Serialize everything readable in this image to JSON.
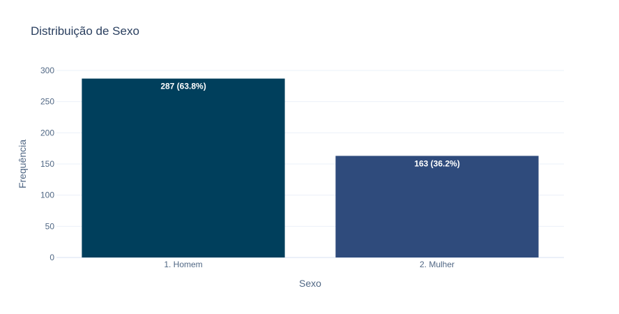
{
  "chart_data": {
    "type": "bar",
    "title": "Distribuição de Sexo",
    "xlabel": "Sexo",
    "ylabel": "Frequência",
    "categories": [
      "1. Homem",
      "2. Mulher"
    ],
    "values": [
      287,
      163
    ],
    "data_labels": [
      "287 (63.8%)",
      "163 (36.2%)"
    ],
    "colors": [
      "#003f5c",
      "#2f4b7c"
    ],
    "ylim": [
      0,
      300
    ],
    "yticks": [
      0,
      50,
      100,
      150,
      200,
      250,
      300
    ],
    "grid": true,
    "legend": "none"
  }
}
